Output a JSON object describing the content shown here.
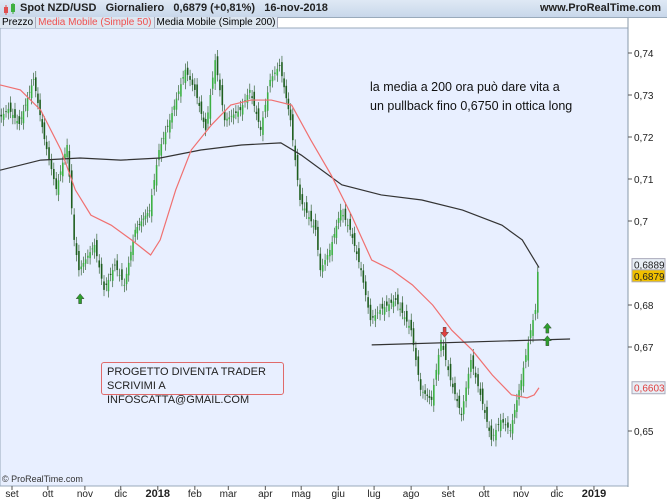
{
  "header": {
    "instrument": "Spot NZD/USD",
    "timeframe": "Giornaliero",
    "last": "0,6879 (+0,81%)",
    "date": "16-nov-2018",
    "site": "www.ProRealTime.com"
  },
  "legend": {
    "price": "Prezzo",
    "ma50": "Media Mobile (Simple 50)",
    "ma200": "Media Mobile (Simple 200)"
  },
  "annotation": [
    "la media a 200 ora può dare vita a",
    "un pullback fino 0,6750 in ottica long"
  ],
  "promo": [
    "PROGETTO DIVENTA TRADER",
    "SCRIVIMI A INFOSCATTA@GMAIL.COM"
  ],
  "copyright": "© ProRealTime.com",
  "colors": {
    "bg": "#e8efff",
    "candle_up": "#2e8b2e",
    "ma50": "#f07070",
    "ma200": "#333333",
    "last_tag": "#f0c000"
  },
  "chart_data": {
    "type": "candlestick",
    "ylim": [
      0.64,
      0.745
    ],
    "yticks": [
      "0,74",
      "0,73",
      "0,72",
      "0,71",
      "0,7",
      "0,68",
      "0,67",
      "0,65"
    ],
    "ytick_values": [
      0.74,
      0.73,
      0.72,
      0.71,
      0.7,
      0.68,
      0.67,
      0.65
    ],
    "xticks": [
      {
        "label": "set",
        "date": "2017-09-01"
      },
      {
        "label": "ott",
        "date": "2017-10-01"
      },
      {
        "label": "nov",
        "date": "2017-11-01"
      },
      {
        "label": "dic",
        "date": "2017-12-01"
      },
      {
        "label": "2018",
        "date": "2018-01-01",
        "bold": true
      },
      {
        "label": "feb",
        "date": "2018-02-01"
      },
      {
        "label": "mar",
        "date": "2018-03-01"
      },
      {
        "label": "apr",
        "date": "2018-04-01"
      },
      {
        "label": "mag",
        "date": "2018-05-01"
      },
      {
        "label": "giu",
        "date": "2018-06-01"
      },
      {
        "label": "lug",
        "date": "2018-07-01"
      },
      {
        "label": "ago",
        "date": "2018-08-01"
      },
      {
        "label": "set",
        "date": "2018-09-01"
      },
      {
        "label": "ott",
        "date": "2018-10-01"
      },
      {
        "label": "nov",
        "date": "2018-11-01"
      },
      {
        "label": "dic",
        "date": "2018-12-01"
      },
      {
        "label": "2019",
        "date": "2019-01-01",
        "bold": true
      }
    ],
    "price": [
      [
        "2017-08-22",
        0.7243
      ],
      [
        "2017-08-30",
        0.7267
      ],
      [
        "2017-09-08",
        0.7231
      ],
      [
        "2017-09-20",
        0.7338
      ],
      [
        "2017-09-29",
        0.7195
      ],
      [
        "2017-10-09",
        0.7076
      ],
      [
        "2017-10-18",
        0.7181
      ],
      [
        "2017-10-24",
        0.6955
      ],
      [
        "2017-10-28",
        0.6883
      ],
      [
        "2017-11-10",
        0.6943
      ],
      [
        "2017-11-18",
        0.6836
      ],
      [
        "2017-11-27",
        0.6895
      ],
      [
        "2017-12-05",
        0.6848
      ],
      [
        "2017-12-14",
        0.6979
      ],
      [
        "2017-12-26",
        0.7026
      ],
      [
        "2018-01-03",
        0.7169
      ],
      [
        "2018-01-12",
        0.724
      ],
      [
        "2018-01-25",
        0.736
      ],
      [
        "2018-02-02",
        0.7312
      ],
      [
        "2018-02-11",
        0.7217
      ],
      [
        "2018-02-19",
        0.7383
      ],
      [
        "2018-02-27",
        0.724
      ],
      [
        "2018-03-12",
        0.7264
      ],
      [
        "2018-03-20",
        0.7312
      ],
      [
        "2018-03-29",
        0.7217
      ],
      [
        "2018-04-06",
        0.7336
      ],
      [
        "2018-04-14",
        0.7371
      ],
      [
        "2018-04-23",
        0.724
      ],
      [
        "2018-05-01",
        0.705
      ],
      [
        "2018-05-14",
        0.6979
      ],
      [
        "2018-05-18",
        0.6883
      ],
      [
        "2018-05-26",
        0.6931
      ],
      [
        "2018-06-04",
        0.7026
      ],
      [
        "2018-06-12",
        0.6979
      ],
      [
        "2018-06-21",
        0.6883
      ],
      [
        "2018-06-29",
        0.6764
      ],
      [
        "2018-07-07",
        0.6788
      ],
      [
        "2018-07-20",
        0.6812
      ],
      [
        "2018-08-02",
        0.674
      ],
      [
        "2018-08-10",
        0.6598
      ],
      [
        "2018-08-19",
        0.6574
      ],
      [
        "2018-08-27",
        0.6717
      ],
      [
        "2018-09-04",
        0.6621
      ],
      [
        "2018-09-13",
        0.6538
      ],
      [
        "2018-09-21",
        0.6669
      ],
      [
        "2018-09-29",
        0.6586
      ],
      [
        "2018-10-08",
        0.6479
      ],
      [
        "2018-10-16",
        0.6526
      ],
      [
        "2018-10-24",
        0.6502
      ],
      [
        "2018-11-02",
        0.6621
      ],
      [
        "2018-11-10",
        0.674
      ],
      [
        "2018-11-14",
        0.6788
      ],
      [
        "2018-11-16",
        0.6879
      ]
    ],
    "ma50": [
      [
        "2017-08-22",
        0.7324
      ],
      [
        "2017-09-08",
        0.7312
      ],
      [
        "2017-09-25",
        0.7264
      ],
      [
        "2017-10-12",
        0.7169
      ],
      [
        "2017-10-24",
        0.7074
      ],
      [
        "2017-11-06",
        0.7014
      ],
      [
        "2017-11-23",
        0.699
      ],
      [
        "2017-12-10",
        0.6955
      ],
      [
        "2017-12-26",
        0.6919
      ],
      [
        "2018-01-03",
        0.6955
      ],
      [
        "2018-01-16",
        0.7074
      ],
      [
        "2018-01-29",
        0.7169
      ],
      [
        "2018-02-15",
        0.7229
      ],
      [
        "2018-03-03",
        0.7276
      ],
      [
        "2018-03-20",
        0.7288
      ],
      [
        "2018-04-06",
        0.7288
      ],
      [
        "2018-04-23",
        0.7276
      ],
      [
        "2018-05-09",
        0.7193
      ],
      [
        "2018-05-26",
        0.711
      ],
      [
        "2018-06-12",
        0.7014
      ],
      [
        "2018-06-29",
        0.6907
      ],
      [
        "2018-07-16",
        0.6883
      ],
      [
        "2018-08-02",
        0.6848
      ],
      [
        "2018-08-19",
        0.68
      ],
      [
        "2018-09-04",
        0.674
      ],
      [
        "2018-09-21",
        0.6693
      ],
      [
        "2018-10-08",
        0.6633
      ],
      [
        "2018-10-24",
        0.6586
      ],
      [
        "2018-11-06",
        0.6579
      ],
      [
        "2018-11-12",
        0.6586
      ],
      [
        "2018-11-16",
        0.6603
      ]
    ],
    "ma200": [
      [
        "2017-08-22",
        0.7121
      ],
      [
        "2017-09-25",
        0.7145
      ],
      [
        "2017-10-28",
        0.715
      ],
      [
        "2017-12-01",
        0.7145
      ],
      [
        "2018-01-03",
        0.715
      ],
      [
        "2018-02-06",
        0.7169
      ],
      [
        "2018-03-12",
        0.7181
      ],
      [
        "2018-04-14",
        0.7186
      ],
      [
        "2018-05-01",
        0.7157
      ],
      [
        "2018-06-04",
        0.7086
      ],
      [
        "2018-07-07",
        0.7062
      ],
      [
        "2018-08-10",
        0.705
      ],
      [
        "2018-09-13",
        0.7026
      ],
      [
        "2018-10-16",
        0.699
      ],
      [
        "2018-11-02",
        0.6955
      ],
      [
        "2018-11-16",
        0.6889
      ]
    ],
    "trendline": [
      [
        "2018-06-29",
        0.6705
      ],
      [
        "2018-12-12",
        0.6719
      ]
    ],
    "arrows": [
      {
        "date": "2017-10-28",
        "price": 0.6815,
        "dir": "up",
        "color": "#2e9e2e"
      },
      {
        "date": "2018-08-29",
        "price": 0.6735,
        "dir": "down",
        "color": "#e04040"
      },
      {
        "date": "2018-11-23",
        "price": 0.6745,
        "dir": "up",
        "color": "#2e9e2e"
      },
      {
        "date": "2018-11-23",
        "price": 0.6715,
        "dir": "up",
        "color": "#2e9e2e"
      }
    ],
    "tags": [
      {
        "label": "0,6889",
        "value": 0.6889,
        "style": "ma200"
      },
      {
        "label": "0,6879",
        "value": 0.6879,
        "style": "last"
      },
      {
        "label": "0,6603",
        "value": 0.6603,
        "style": "ma50"
      }
    ]
  }
}
